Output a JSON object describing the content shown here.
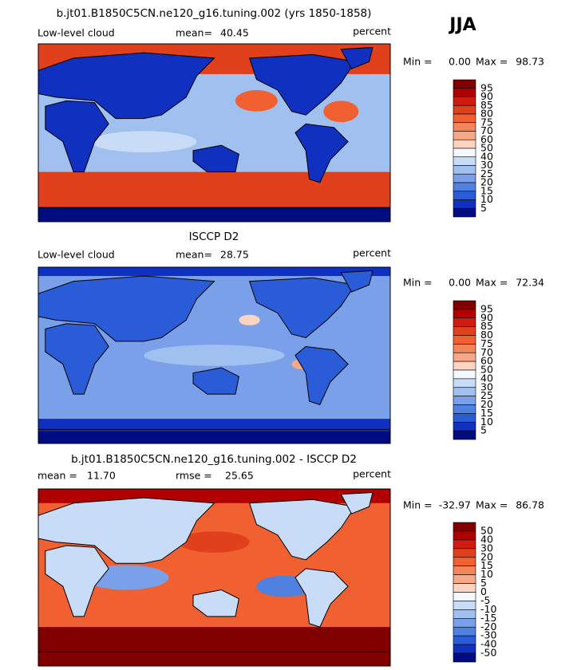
{
  "header": {
    "season": "JJA"
  },
  "panels": [
    {
      "title": "b.jt01.B1850C5CN.ne120_g16.tuning.002 (yrs 1850-1858)",
      "field": "Low-level cloud",
      "mean_label": "mean=",
      "mean": "40.45",
      "units": "percent",
      "min_label": "Min =",
      "min": "0.00",
      "max_label": "Max =",
      "max": "98.73",
      "colorbar": {
        "labels": [
          "95",
          "90",
          "85",
          "80",
          "75",
          "70",
          "60",
          "50",
          "40",
          "30",
          "25",
          "20",
          "15",
          "10",
          "5"
        ],
        "colors": [
          "#800000",
          "#b00000",
          "#d01c10",
          "#e0401c",
          "#f06030",
          "#f4845a",
          "#f8a886",
          "#fcd4c0",
          "#f4f8ff",
          "#c8dcf8",
          "#a0c0f0",
          "#7aa0ea",
          "#5080e0",
          "#2a5cd8",
          "#1030c0",
          "#000c80"
        ]
      }
    },
    {
      "title": "ISCCP D2",
      "field": "Low-level cloud",
      "mean_label": "mean=",
      "mean": "28.75",
      "units": "percent",
      "min_label": "Min =",
      "min": "0.00",
      "max_label": "Max =",
      "max": "72.34",
      "colorbar": {
        "labels": [
          "95",
          "90",
          "85",
          "80",
          "75",
          "70",
          "60",
          "50",
          "40",
          "30",
          "25",
          "20",
          "15",
          "10",
          "5"
        ],
        "colors": [
          "#800000",
          "#b00000",
          "#d01c10",
          "#e0401c",
          "#f06030",
          "#f4845a",
          "#f8a886",
          "#fcd4c0",
          "#f4f8ff",
          "#c8dcf8",
          "#a0c0f0",
          "#7aa0ea",
          "#5080e0",
          "#2a5cd8",
          "#1030c0",
          "#000c80"
        ]
      }
    },
    {
      "title": "b.jt01.B1850C5CN.ne120_g16.tuning.002 - ISCCP D2",
      "mean_label": "mean =",
      "mean": "11.70",
      "rmse_label": "rmse =",
      "rmse": "25.65",
      "units": "percent",
      "min_label": "Min =",
      "min": "-32.97",
      "max_label": "Max =",
      "max": "86.78",
      "colorbar": {
        "labels": [
          "50",
          "40",
          "30",
          "20",
          "15",
          "10",
          "5",
          "0",
          "-5",
          "-10",
          "-15",
          "-20",
          "-30",
          "-40",
          "-50"
        ],
        "colors": [
          "#800000",
          "#b00000",
          "#d01c10",
          "#e0401c",
          "#f06030",
          "#f4845a",
          "#f8a886",
          "#fcd4c0",
          "#f4f8ff",
          "#c8dcf8",
          "#a0c0f0",
          "#7aa0ea",
          "#5080e0",
          "#2a5cd8",
          "#1030c0",
          "#000c80"
        ]
      }
    }
  ]
}
